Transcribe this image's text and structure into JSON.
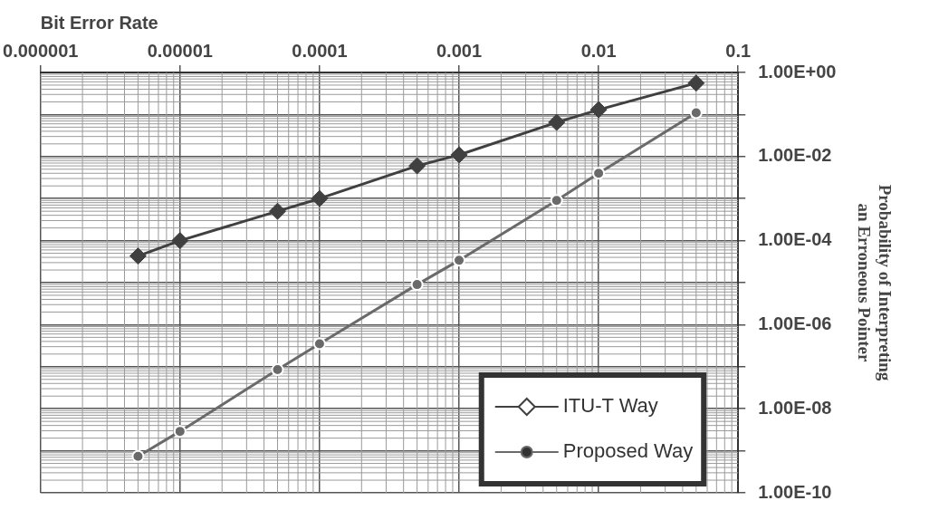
{
  "chart_data": {
    "type": "line",
    "xlabel": "Bit Error Rate",
    "ylabel": "Probability of Interpreting an Erroneous Pointer",
    "log": "xy",
    "grid": true,
    "legend": "bottom right",
    "xlim": [
      1e-06,
      0.1
    ],
    "xticks": [
      {
        "value": 1e-06,
        "label": "0.000001"
      },
      {
        "value": 1e-05,
        "label": "0.00001"
      },
      {
        "value": 0.0001,
        "label": "0.0001"
      },
      {
        "value": 0.001,
        "label": "0.001"
      },
      {
        "value": 0.01,
        "label": "0.01"
      },
      {
        "value": 0.1,
        "label": "0.1"
      }
    ],
    "ylim": [
      1e-10,
      1
    ],
    "yticks": [
      {
        "value": 1,
        "label": "1.00E+00"
      },
      {
        "value": 0.1,
        "label": null
      },
      {
        "value": 0.01,
        "label": "1.00E-02"
      },
      {
        "value": 0.001,
        "label": null
      },
      {
        "value": 0.0001,
        "label": "1.00E-04"
      },
      {
        "value": 1e-05,
        "label": null
      },
      {
        "value": 1e-06,
        "label": "1.00E-06"
      },
      {
        "value": 1e-07,
        "label": null
      },
      {
        "value": 1e-08,
        "label": "1.00E-08"
      },
      {
        "value": 1e-09,
        "label": null
      },
      {
        "value": 1e-10,
        "label": "1.00E-10"
      }
    ],
    "x": [
      5e-06,
      1e-05,
      5e-05,
      0.0001,
      0.0005,
      0.001,
      0.005,
      0.01,
      0.05
    ],
    "line_style": "solid",
    "series": [
      {
        "name": "ITU-T Way",
        "color": "#404040",
        "marker": "diamond",
        "values": [
          4.3e-05,
          0.0001,
          0.0005,
          0.001,
          0.006,
          0.011,
          0.065,
          0.13,
          0.56
        ]
      },
      {
        "name": "Proposed Way",
        "color": "#6a6a6a",
        "marker": "circle",
        "values": [
          7.4e-10,
          2.9e-09,
          8.5e-08,
          3.5e-07,
          9e-06,
          3.4e-05,
          0.0009,
          0.004,
          0.11
        ]
      }
    ]
  }
}
